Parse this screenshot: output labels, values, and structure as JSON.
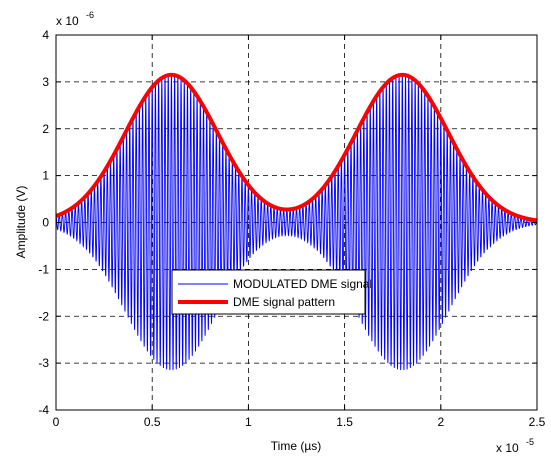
{
  "chart_data": {
    "type": "line",
    "xlabel": "Time (µs)",
    "ylabel": "Amplitude (V)",
    "xlim": [
      0,
      2.5e-05
    ],
    "ylim": [
      -4e-06,
      4e-06
    ],
    "x_exponent_label": "x 10",
    "x_exponent_power": "-5",
    "y_exponent_label": "x 10",
    "y_exponent_power": "-6",
    "xticks": [
      0,
      0.5,
      1,
      1.5,
      2,
      2.5
    ],
    "xtick_labels": [
      "0",
      "0.5",
      "1",
      "1.5",
      "2",
      "2.5"
    ],
    "yticks": [
      4,
      3,
      2,
      1,
      0,
      -1,
      -2,
      -3,
      -4
    ],
    "ytick_labels": [
      "4",
      "3",
      "2",
      "1",
      "0",
      "-1",
      "-2",
      "-3",
      "-4"
    ],
    "grid": true,
    "legend_position": "center-bottom",
    "series": [
      {
        "name": "MODULATED DME signal",
        "color": "#0000ff",
        "kind": "modulated carrier under gaussian envelope",
        "peak_amplitude": 3.15e-06,
        "pulse_centers": [
          6e-06,
          1.8e-05
        ],
        "envelope_sigma": 2.4e-06,
        "carrier_cycles": 150
      },
      {
        "name": "DME signal pattern",
        "color": "#ff0000",
        "kind": "gaussian pulse pair envelope",
        "peak_amplitude": 3.15e-06,
        "pulse_centers": [
          6e-06,
          1.8e-05
        ],
        "envelope_sigma": 2.4e-06,
        "x": [
          0,
          1e-06,
          2e-06,
          3e-06,
          4e-06,
          5e-06,
          6e-06,
          7e-06,
          8e-06,
          9e-06,
          1e-05,
          1.1e-05,
          1.2e-05,
          1.3e-05,
          1.4e-05,
          1.5e-05,
          1.6e-05,
          1.7e-05,
          1.8e-05,
          1.9e-05,
          2e-05,
          2.1e-05,
          2.2e-05,
          2.3e-05,
          2.4e-05,
          2.5e-05
        ],
        "y": [
          0,
          1e-08,
          8e-08,
          4.6e-07,
          1.43e-06,
          2.68e-06,
          3.15e-06,
          2.68e-06,
          1.43e-06,
          4.6e-07,
          8e-08,
          1e-08,
          0,
          1e-08,
          8e-08,
          4.6e-07,
          1.43e-06,
          2.68e-06,
          3.15e-06,
          2.68e-06,
          1.43e-06,
          4.6e-07,
          8e-08,
          1e-08,
          0,
          0
        ]
      }
    ]
  }
}
